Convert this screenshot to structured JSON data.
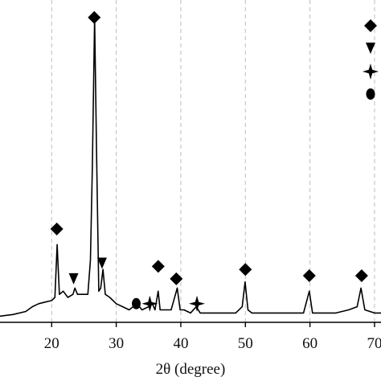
{
  "chart_data": {
    "type": "line",
    "title": "",
    "xlabel": "2θ (degree)",
    "ylabel": "",
    "xlim": [
      12,
      71
    ],
    "ylim": [
      0,
      100
    ],
    "x_ticks": [
      20,
      30,
      40,
      50,
      60,
      70
    ],
    "x_tick_labels": [
      "20",
      "30",
      "40",
      "50",
      "60",
      "70"
    ],
    "grid": "vertical dashed",
    "legend": {
      "placement": "top-right",
      "symbols": [
        "diamond",
        "triangle-down",
        "star",
        "circle"
      ]
    },
    "series": [
      {
        "values": [
          [
            12,
            2
          ],
          [
            14,
            2.5
          ],
          [
            16,
            3.5
          ],
          [
            17,
            5
          ],
          [
            18,
            6
          ],
          [
            19,
            6.5
          ],
          [
            20,
            7
          ],
          [
            20.5,
            8
          ],
          [
            20.85,
            25
          ],
          [
            21.2,
            9
          ],
          [
            21.8,
            10
          ],
          [
            22.5,
            8
          ],
          [
            23.3,
            9
          ],
          [
            23.6,
            11
          ],
          [
            24,
            9
          ],
          [
            25,
            9
          ],
          [
            25.6,
            9
          ],
          [
            26.0,
            20
          ],
          [
            26.3,
            50
          ],
          [
            26.65,
            98
          ],
          [
            26.95,
            55
          ],
          [
            27.3,
            10
          ],
          [
            27.6,
            11
          ],
          [
            27.95,
            17
          ],
          [
            28.3,
            9
          ],
          [
            29,
            8
          ],
          [
            30,
            6
          ],
          [
            31,
            5
          ],
          [
            32,
            4
          ],
          [
            33.2,
            6
          ],
          [
            34,
            4
          ],
          [
            35,
            5
          ],
          [
            35.6,
            6
          ],
          [
            36.0,
            4
          ],
          [
            36.5,
            10
          ],
          [
            36.8,
            4
          ],
          [
            37.5,
            4
          ],
          [
            38.5,
            4
          ],
          [
            39.45,
            11
          ],
          [
            39.9,
            4
          ],
          [
            40.5,
            4
          ],
          [
            41.5,
            3
          ],
          [
            42.4,
            5
          ],
          [
            43,
            3
          ],
          [
            45,
            3
          ],
          [
            47,
            3
          ],
          [
            48.5,
            3
          ],
          [
            49.5,
            5
          ],
          [
            49.95,
            13
          ],
          [
            50.4,
            4
          ],
          [
            51,
            3
          ],
          [
            53,
            3
          ],
          [
            55,
            3
          ],
          [
            57,
            3
          ],
          [
            59,
            3
          ],
          [
            59.9,
            10
          ],
          [
            60.4,
            3
          ],
          [
            62,
            3
          ],
          [
            64,
            3
          ],
          [
            66,
            4
          ],
          [
            67.3,
            5
          ],
          [
            67.9,
            11
          ],
          [
            68.5,
            4
          ],
          [
            70,
            3
          ],
          [
            71,
            3
          ]
        ]
      }
    ],
    "markers": [
      {
        "symbol": "diamond",
        "x": 20.8,
        "level": 30
      },
      {
        "symbol": "diamond",
        "x": 26.6,
        "level": 98
      },
      {
        "symbol": "triangle-down",
        "x": 23.4,
        "level": 14
      },
      {
        "symbol": "triangle-down",
        "x": 27.8,
        "level": 19
      },
      {
        "symbol": "circle",
        "x": 33.1,
        "level": 6
      },
      {
        "symbol": "star",
        "x": 35.2,
        "level": 6
      },
      {
        "symbol": "diamond",
        "x": 36.5,
        "level": 18
      },
      {
        "symbol": "diamond",
        "x": 39.3,
        "level": 14
      },
      {
        "symbol": "star",
        "x": 42.5,
        "level": 6
      },
      {
        "symbol": "diamond",
        "x": 50.0,
        "level": 17
      },
      {
        "symbol": "diamond",
        "x": 59.9,
        "level": 15
      },
      {
        "symbol": "diamond",
        "x": 68.0,
        "level": 15
      }
    ]
  }
}
